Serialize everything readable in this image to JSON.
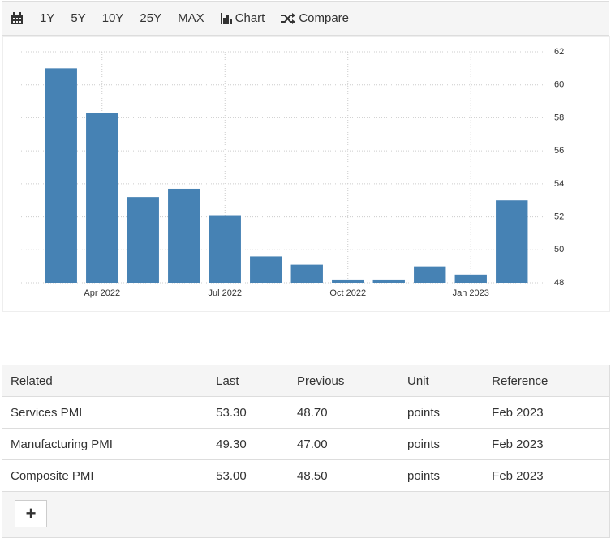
{
  "toolbar": {
    "ranges": [
      "1Y",
      "5Y",
      "10Y",
      "25Y",
      "MAX"
    ],
    "chart": "Chart",
    "compare": "Compare"
  },
  "chart_data": {
    "type": "bar",
    "categories": [
      null,
      "Apr 2022",
      null,
      null,
      "Jul 2022",
      null,
      null,
      "Oct 2022",
      null,
      null,
      "Jan 2023",
      null
    ],
    "values": [
      61.0,
      58.3,
      53.2,
      53.7,
      52.1,
      49.6,
      49.1,
      48.2,
      48.2,
      49.0,
      48.5,
      53.0
    ],
    "color": "#4682b4",
    "ylim": [
      48,
      62
    ],
    "yticks": [
      48,
      50,
      52,
      54,
      56,
      58,
      60,
      62
    ],
    "grid": true
  },
  "table": {
    "columns": [
      "Related",
      "Last",
      "Previous",
      "Unit",
      "Reference"
    ],
    "rows": [
      [
        "Services PMI",
        "53.30",
        "48.70",
        "points",
        "Feb 2023"
      ],
      [
        "Manufacturing PMI",
        "49.30",
        "47.00",
        "points",
        "Feb 2023"
      ],
      [
        "Composite PMI",
        "53.00",
        "48.50",
        "points",
        "Feb 2023"
      ]
    ],
    "add_button": "+"
  }
}
